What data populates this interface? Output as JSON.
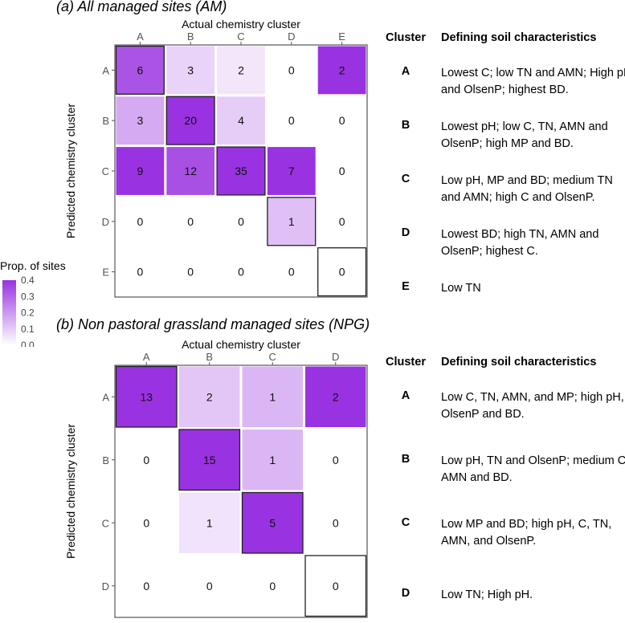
{
  "legend": {
    "title": "Prop. of sites",
    "ticks": [
      "0.4",
      "0.3",
      "0.2",
      "0.1",
      "0.0"
    ],
    "max_color": "#9932e0",
    "min_color": "#ffffff"
  },
  "chart_data": [
    {
      "type": "heatmap",
      "title": "(a) All managed sites (AM)",
      "xlabel": "Actual chemistry cluster",
      "ylabel": "Predicted chemistry cluster",
      "x_categories": [
        "A",
        "B",
        "C",
        "D",
        "E"
      ],
      "y_categories": [
        "A",
        "B",
        "C",
        "D",
        "E"
      ],
      "values": [
        [
          6,
          3,
          2,
          0,
          2
        ],
        [
          3,
          20,
          4,
          0,
          0
        ],
        [
          9,
          12,
          35,
          7,
          0
        ],
        [
          0,
          0,
          0,
          1,
          0
        ],
        [
          0,
          0,
          0,
          0,
          0
        ]
      ],
      "value_range": [
        0,
        0.4
      ],
      "table": {
        "header_cluster": "Cluster",
        "header_chars": "Defining soil characteristics",
        "rows": [
          {
            "cluster": "A",
            "text": "Lowest C; low TN and AMN; High pH and OlsenP; highest BD."
          },
          {
            "cluster": "B",
            "text": "Lowest pH; low C, TN, AMN and OlsenP; high MP and BD."
          },
          {
            "cluster": "C",
            "text": "Low pH, MP and BD; medium TN and AMN; high C and OlsenP."
          },
          {
            "cluster": "D",
            "text": "Lowest BD; high TN, AMN and OlsenP; highest C."
          },
          {
            "cluster": "E",
            "text": "Low TN"
          }
        ]
      }
    },
    {
      "type": "heatmap",
      "title": "(b) Non pastoral grassland managed sites (NPG)",
      "xlabel": "Actual chemistry cluster",
      "ylabel": "Predicted chemistry cluster",
      "x_categories": [
        "A",
        "B",
        "C",
        "D"
      ],
      "y_categories": [
        "A",
        "B",
        "C",
        "D"
      ],
      "values": [
        [
          13,
          2,
          1,
          2
        ],
        [
          0,
          15,
          1,
          0
        ],
        [
          0,
          1,
          5,
          0
        ],
        [
          0,
          0,
          0,
          0
        ]
      ],
      "value_range": [
        0,
        0.4
      ],
      "table": {
        "header_cluster": "Cluster",
        "header_chars": "Defining soil characteristics",
        "rows": [
          {
            "cluster": "A",
            "text": "Low C, TN, AMN, and MP; high pH, OlsenP and BD."
          },
          {
            "cluster": "B",
            "text": "Low pH, TN and OlsenP; medium C, AMN and BD."
          },
          {
            "cluster": "C",
            "text": "Low MP and BD; high pH, C, TN, AMN, and OlsenP."
          },
          {
            "cluster": "D",
            "text": "Low TN; High pH."
          }
        ]
      }
    }
  ]
}
